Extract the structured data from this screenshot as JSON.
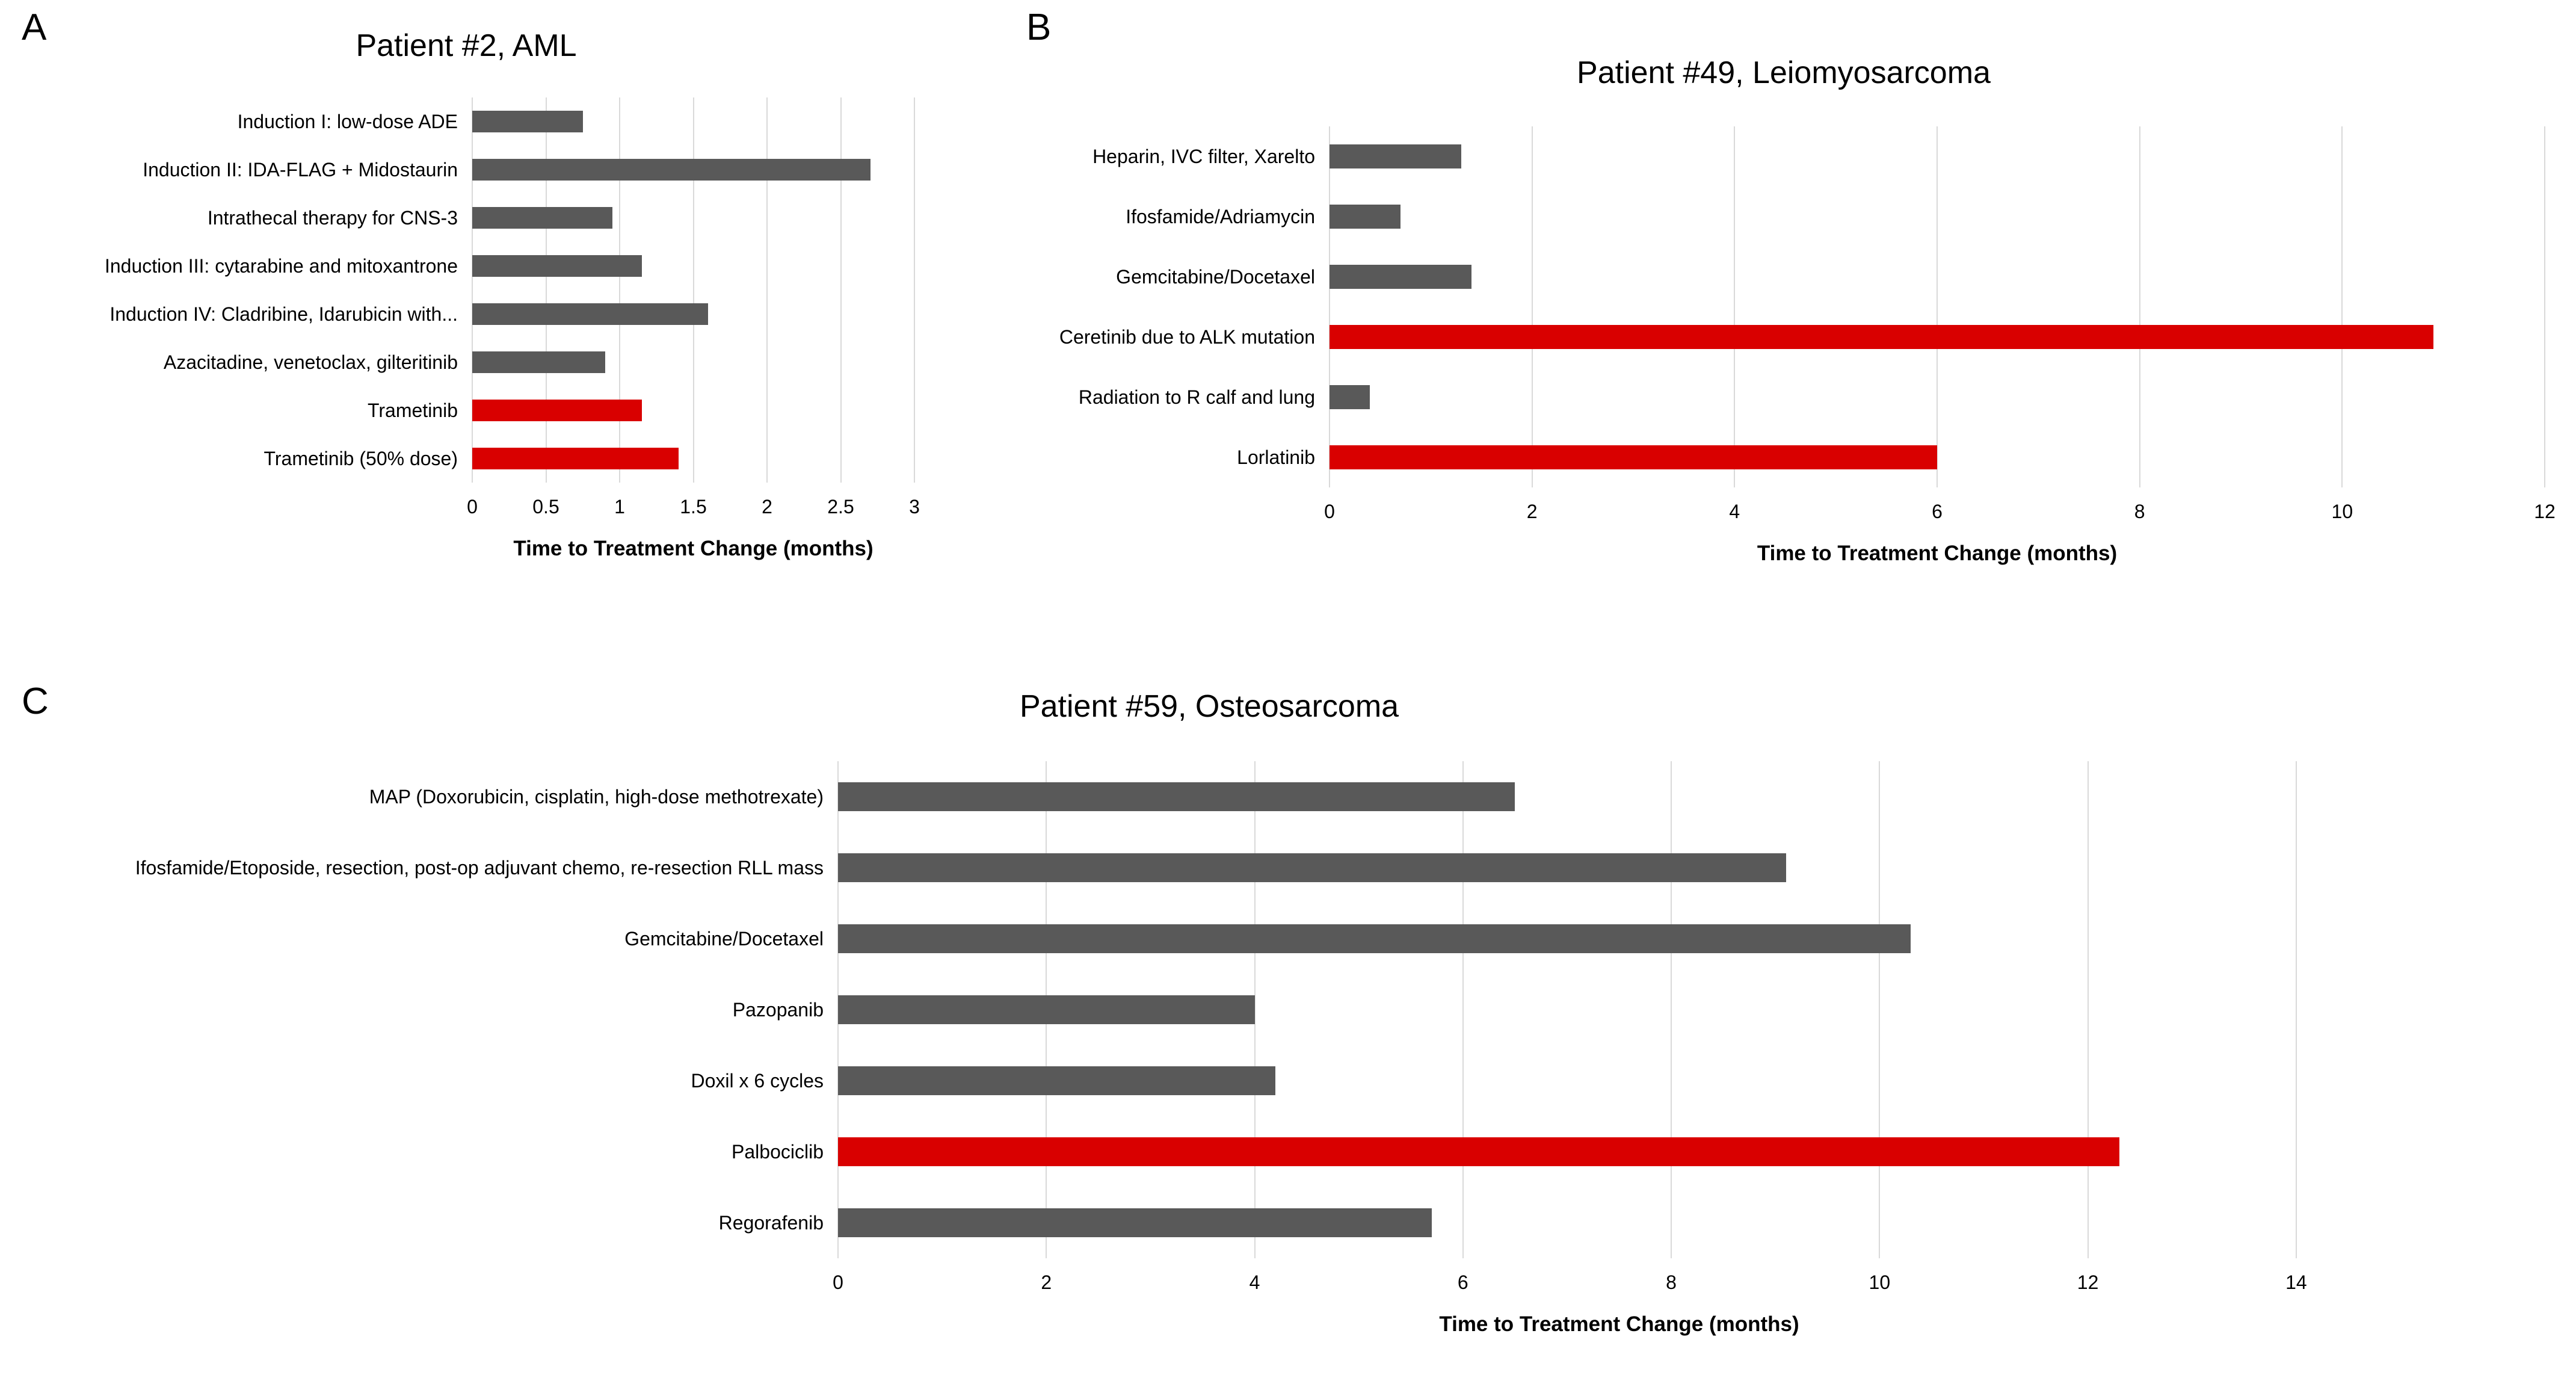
{
  "figure": {
    "background": "#FFFFFF"
  },
  "panels": [
    {
      "letter": "A"
    },
    {
      "letter": "B"
    },
    {
      "letter": "C"
    }
  ],
  "colors": {
    "bar_default": "#595959",
    "bar_highlight": "#D90000",
    "gridline": "#D9D9D9",
    "text": "#000000"
  },
  "chart_data": [
    {
      "type": "bar",
      "orientation": "horizontal",
      "panel": "A",
      "title": "Patient #2, AML",
      "xlabel": "Time to Treatment Change (months)",
      "xlim": [
        0,
        3
      ],
      "xtick_values": [
        0,
        0.5,
        1,
        1.5,
        2,
        2.5,
        3
      ],
      "xtick_labels": [
        "0",
        "0.5",
        "1",
        "1.5",
        "2",
        "2.5",
        "3"
      ],
      "grid": true,
      "legend": false,
      "bars": [
        {
          "label": "Induction I: low-dose ADE",
          "value": 0.75,
          "highlight": false
        },
        {
          "label": "Induction II: IDA-FLAG + Midostaurin",
          "value": 2.7,
          "highlight": false
        },
        {
          "label": "Intrathecal therapy for CNS-3",
          "value": 0.95,
          "highlight": false
        },
        {
          "label": "Induction III: cytarabine and mitoxantrone",
          "value": 1.15,
          "highlight": false
        },
        {
          "label": "Induction IV: Cladribine, Idarubicin with...",
          "value": 1.6,
          "highlight": false
        },
        {
          "label": "Azacitadine, venetoclax, gilteritinib",
          "value": 0.9,
          "highlight": false
        },
        {
          "label": "Trametinib",
          "value": 1.15,
          "highlight": true
        },
        {
          "label": "Trametinib (50% dose)",
          "value": 1.4,
          "highlight": true
        }
      ]
    },
    {
      "type": "bar",
      "orientation": "horizontal",
      "panel": "B",
      "title": "Patient #49, Leiomyosarcoma",
      "xlabel": "Time to Treatment Change (months)",
      "xlim": [
        0,
        12
      ],
      "xtick_values": [
        0,
        2,
        4,
        6,
        8,
        10,
        12
      ],
      "xtick_labels": [
        "0",
        "2",
        "4",
        "6",
        "8",
        "10",
        "12"
      ],
      "grid": true,
      "legend": false,
      "bars": [
        {
          "label": "Heparin, IVC filter, Xarelto",
          "value": 1.3,
          "highlight": false
        },
        {
          "label": "Ifosfamide/Adriamycin",
          "value": 0.7,
          "highlight": false
        },
        {
          "label": "Gemcitabine/Docetaxel",
          "value": 1.4,
          "highlight": false
        },
        {
          "label": "Ceretinib due to ALK mutation",
          "value": 10.9,
          "highlight": true
        },
        {
          "label": "Radiation to R calf and lung",
          "value": 0.4,
          "highlight": false
        },
        {
          "label": "Lorlatinib",
          "value": 6.0,
          "highlight": true
        }
      ]
    },
    {
      "type": "bar",
      "orientation": "horizontal",
      "panel": "C",
      "title": "Patient #59, Osteosarcoma",
      "xlabel": "Time to Treatment Change (months)",
      "xlim": [
        0,
        15
      ],
      "xtick_values": [
        0,
        2,
        4,
        6,
        8,
        10,
        12,
        14
      ],
      "xtick_labels": [
        "0",
        "2",
        "4",
        "6",
        "8",
        "10",
        "12",
        "14"
      ],
      "grid": true,
      "legend": false,
      "bars": [
        {
          "label": "MAP (Doxorubicin, cisplatin, high-dose methotrexate)",
          "value": 6.5,
          "highlight": false
        },
        {
          "label": "Ifosfamide/Etoposide, resection, post-op adjuvant chemo, re-resection RLL mass",
          "value": 9.1,
          "highlight": false
        },
        {
          "label": "Gemcitabine/Docetaxel",
          "value": 10.3,
          "highlight": false
        },
        {
          "label": "Pazopanib",
          "value": 4.0,
          "highlight": false
        },
        {
          "label": "Doxil x 6 cycles",
          "value": 4.2,
          "highlight": false
        },
        {
          "label": "Palbociclib",
          "value": 12.3,
          "highlight": true
        },
        {
          "label": "Regorafenib",
          "value": 5.7,
          "highlight": false
        }
      ]
    }
  ]
}
